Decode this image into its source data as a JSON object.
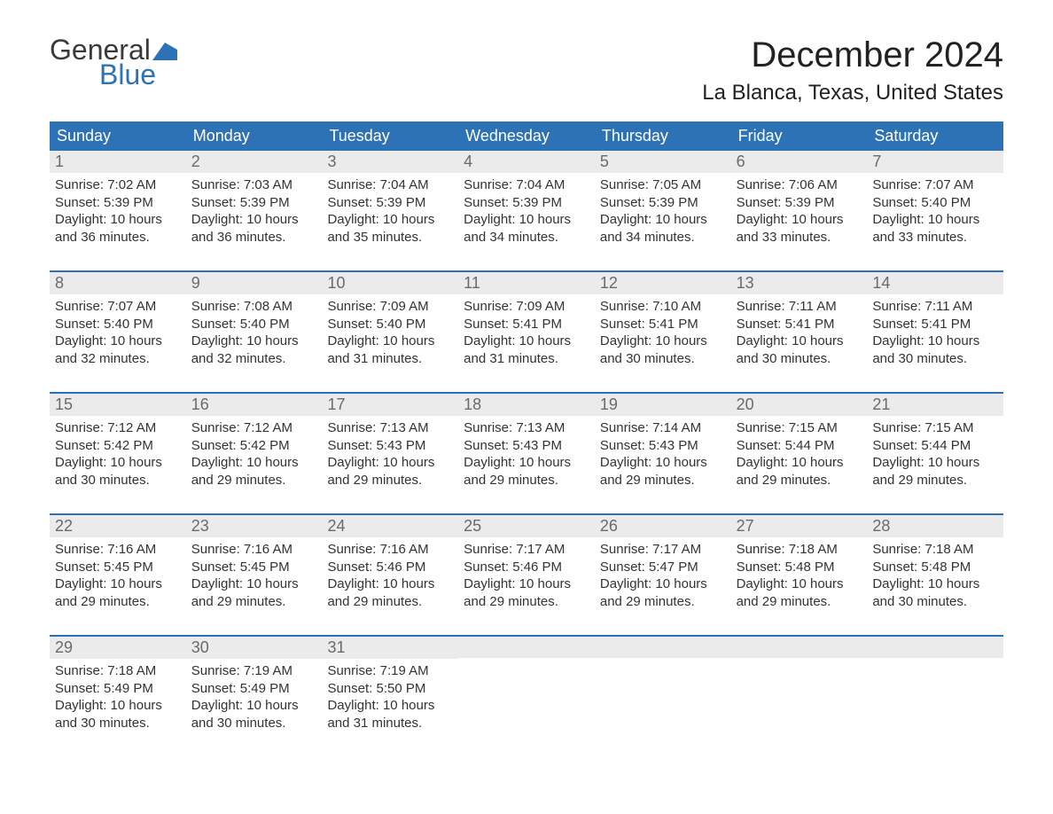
{
  "logo": {
    "line1": "General",
    "line2": "Blue",
    "flag_color": "#2d72b5"
  },
  "title": "December 2024",
  "location": "La Blanca, Texas, United States",
  "colors": {
    "header_bg": "#2d72b5",
    "header_text": "#ffffff",
    "daynum_bg": "#ebebeb",
    "daynum_text": "#6a6a6a",
    "body_text": "#333333",
    "week_border": "#2d72b5",
    "page_bg": "#ffffff"
  },
  "layout": {
    "columns": 7,
    "rows": 5
  },
  "typography": {
    "title_fontsize": 40,
    "location_fontsize": 24,
    "dayheader_fontsize": 18,
    "daynum_fontsize": 18,
    "cell_fontsize": 15,
    "logo_fontsize": 32
  },
  "day_names": [
    "Sunday",
    "Monday",
    "Tuesday",
    "Wednesday",
    "Thursday",
    "Friday",
    "Saturday"
  ],
  "weeks": [
    [
      {
        "num": "1",
        "sunrise": "Sunrise: 7:02 AM",
        "sunset": "Sunset: 5:39 PM",
        "d1": "Daylight: 10 hours",
        "d2": "and 36 minutes."
      },
      {
        "num": "2",
        "sunrise": "Sunrise: 7:03 AM",
        "sunset": "Sunset: 5:39 PM",
        "d1": "Daylight: 10 hours",
        "d2": "and 36 minutes."
      },
      {
        "num": "3",
        "sunrise": "Sunrise: 7:04 AM",
        "sunset": "Sunset: 5:39 PM",
        "d1": "Daylight: 10 hours",
        "d2": "and 35 minutes."
      },
      {
        "num": "4",
        "sunrise": "Sunrise: 7:04 AM",
        "sunset": "Sunset: 5:39 PM",
        "d1": "Daylight: 10 hours",
        "d2": "and 34 minutes."
      },
      {
        "num": "5",
        "sunrise": "Sunrise: 7:05 AM",
        "sunset": "Sunset: 5:39 PM",
        "d1": "Daylight: 10 hours",
        "d2": "and 34 minutes."
      },
      {
        "num": "6",
        "sunrise": "Sunrise: 7:06 AM",
        "sunset": "Sunset: 5:39 PM",
        "d1": "Daylight: 10 hours",
        "d2": "and 33 minutes."
      },
      {
        "num": "7",
        "sunrise": "Sunrise: 7:07 AM",
        "sunset": "Sunset: 5:40 PM",
        "d1": "Daylight: 10 hours",
        "d2": "and 33 minutes."
      }
    ],
    [
      {
        "num": "8",
        "sunrise": "Sunrise: 7:07 AM",
        "sunset": "Sunset: 5:40 PM",
        "d1": "Daylight: 10 hours",
        "d2": "and 32 minutes."
      },
      {
        "num": "9",
        "sunrise": "Sunrise: 7:08 AM",
        "sunset": "Sunset: 5:40 PM",
        "d1": "Daylight: 10 hours",
        "d2": "and 32 minutes."
      },
      {
        "num": "10",
        "sunrise": "Sunrise: 7:09 AM",
        "sunset": "Sunset: 5:40 PM",
        "d1": "Daylight: 10 hours",
        "d2": "and 31 minutes."
      },
      {
        "num": "11",
        "sunrise": "Sunrise: 7:09 AM",
        "sunset": "Sunset: 5:41 PM",
        "d1": "Daylight: 10 hours",
        "d2": "and 31 minutes."
      },
      {
        "num": "12",
        "sunrise": "Sunrise: 7:10 AM",
        "sunset": "Sunset: 5:41 PM",
        "d1": "Daylight: 10 hours",
        "d2": "and 30 minutes."
      },
      {
        "num": "13",
        "sunrise": "Sunrise: 7:11 AM",
        "sunset": "Sunset: 5:41 PM",
        "d1": "Daylight: 10 hours",
        "d2": "and 30 minutes."
      },
      {
        "num": "14",
        "sunrise": "Sunrise: 7:11 AM",
        "sunset": "Sunset: 5:41 PM",
        "d1": "Daylight: 10 hours",
        "d2": "and 30 minutes."
      }
    ],
    [
      {
        "num": "15",
        "sunrise": "Sunrise: 7:12 AM",
        "sunset": "Sunset: 5:42 PM",
        "d1": "Daylight: 10 hours",
        "d2": "and 30 minutes."
      },
      {
        "num": "16",
        "sunrise": "Sunrise: 7:12 AM",
        "sunset": "Sunset: 5:42 PM",
        "d1": "Daylight: 10 hours",
        "d2": "and 29 minutes."
      },
      {
        "num": "17",
        "sunrise": "Sunrise: 7:13 AM",
        "sunset": "Sunset: 5:43 PM",
        "d1": "Daylight: 10 hours",
        "d2": "and 29 minutes."
      },
      {
        "num": "18",
        "sunrise": "Sunrise: 7:13 AM",
        "sunset": "Sunset: 5:43 PM",
        "d1": "Daylight: 10 hours",
        "d2": "and 29 minutes."
      },
      {
        "num": "19",
        "sunrise": "Sunrise: 7:14 AM",
        "sunset": "Sunset: 5:43 PM",
        "d1": "Daylight: 10 hours",
        "d2": "and 29 minutes."
      },
      {
        "num": "20",
        "sunrise": "Sunrise: 7:15 AM",
        "sunset": "Sunset: 5:44 PM",
        "d1": "Daylight: 10 hours",
        "d2": "and 29 minutes."
      },
      {
        "num": "21",
        "sunrise": "Sunrise: 7:15 AM",
        "sunset": "Sunset: 5:44 PM",
        "d1": "Daylight: 10 hours",
        "d2": "and 29 minutes."
      }
    ],
    [
      {
        "num": "22",
        "sunrise": "Sunrise: 7:16 AM",
        "sunset": "Sunset: 5:45 PM",
        "d1": "Daylight: 10 hours",
        "d2": "and 29 minutes."
      },
      {
        "num": "23",
        "sunrise": "Sunrise: 7:16 AM",
        "sunset": "Sunset: 5:45 PM",
        "d1": "Daylight: 10 hours",
        "d2": "and 29 minutes."
      },
      {
        "num": "24",
        "sunrise": "Sunrise: 7:16 AM",
        "sunset": "Sunset: 5:46 PM",
        "d1": "Daylight: 10 hours",
        "d2": "and 29 minutes."
      },
      {
        "num": "25",
        "sunrise": "Sunrise: 7:17 AM",
        "sunset": "Sunset: 5:46 PM",
        "d1": "Daylight: 10 hours",
        "d2": "and 29 minutes."
      },
      {
        "num": "26",
        "sunrise": "Sunrise: 7:17 AM",
        "sunset": "Sunset: 5:47 PM",
        "d1": "Daylight: 10 hours",
        "d2": "and 29 minutes."
      },
      {
        "num": "27",
        "sunrise": "Sunrise: 7:18 AM",
        "sunset": "Sunset: 5:48 PM",
        "d1": "Daylight: 10 hours",
        "d2": "and 29 minutes."
      },
      {
        "num": "28",
        "sunrise": "Sunrise: 7:18 AM",
        "sunset": "Sunset: 5:48 PM",
        "d1": "Daylight: 10 hours",
        "d2": "and 30 minutes."
      }
    ],
    [
      {
        "num": "29",
        "sunrise": "Sunrise: 7:18 AM",
        "sunset": "Sunset: 5:49 PM",
        "d1": "Daylight: 10 hours",
        "d2": "and 30 minutes."
      },
      {
        "num": "30",
        "sunrise": "Sunrise: 7:19 AM",
        "sunset": "Sunset: 5:49 PM",
        "d1": "Daylight: 10 hours",
        "d2": "and 30 minutes."
      },
      {
        "num": "31",
        "sunrise": "Sunrise: 7:19 AM",
        "sunset": "Sunset: 5:50 PM",
        "d1": "Daylight: 10 hours",
        "d2": "and 31 minutes."
      },
      null,
      null,
      null,
      null
    ]
  ]
}
